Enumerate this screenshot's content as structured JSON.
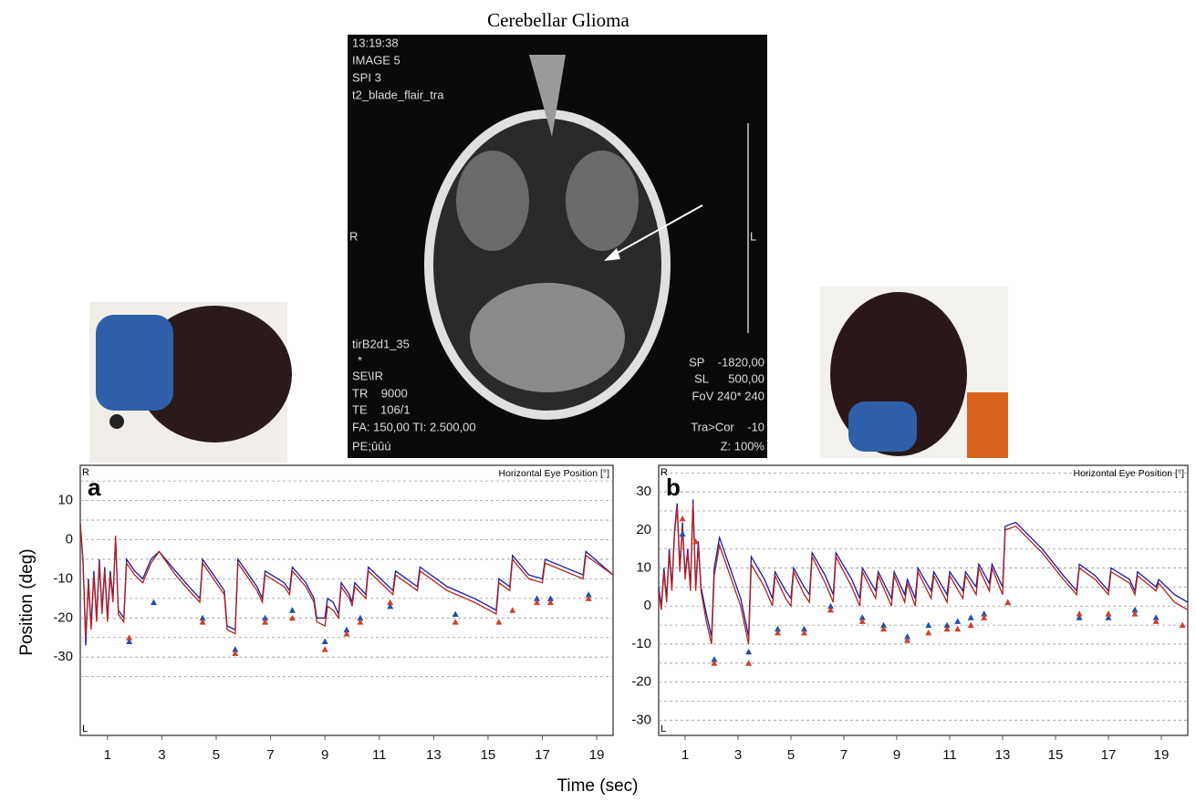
{
  "figure": {
    "title": "Cerebellar Glioma",
    "xlabel": "Time (sec)",
    "ylabel": "Position (deg)",
    "mri_text": [
      "13:19:38",
      "IMAGE 5",
      "SPI 3",
      "t2_blade_flair_tra",
      "R",
      "L",
      "tirB2d1_35",
      "*",
      "SE\\IR",
      "TR    9000",
      "TE    106/1",
      "FA: 150,00 TI: 2.500,00",
      "PE;ûûú",
      "SP    -1820,00",
      "SL      500,00",
      "FoV 240* 240",
      "Tra>Cor    -10",
      "Z: 100%"
    ]
  },
  "chart_data": [
    {
      "type": "line",
      "panel_label": "a",
      "annotation": "Horizontal Eye Position [°]",
      "corner_labels": [
        "R",
        "L"
      ],
      "xlim": [
        0,
        19.6
      ],
      "ylim": [
        -50,
        19
      ],
      "xticks": [
        1,
        3,
        5,
        7,
        9,
        11,
        13,
        15,
        17,
        19
      ],
      "yticks": [
        10,
        0,
        -10,
        -20,
        -30
      ],
      "minor_yticks": [
        15,
        5,
        -5,
        -15,
        -25,
        -35
      ],
      "grid": true,
      "x": [
        0,
        0.1,
        0.2,
        0.3,
        0.4,
        0.5,
        0.6,
        0.7,
        0.8,
        0.9,
        1.0,
        1.1,
        1.2,
        1.3,
        1.4,
        1.6,
        1.7,
        2.0,
        2.3,
        2.6,
        2.9,
        3.5,
        4.0,
        4.4,
        4.5,
        5.0,
        5.3,
        5.4,
        5.7,
        5.8,
        6.5,
        6.7,
        6.8,
        7.5,
        7.7,
        7.8,
        8.3,
        8.6,
        8.7,
        9.0,
        9.1,
        9.3,
        9.5,
        9.6,
        9.9,
        10.0,
        10.1,
        10.5,
        10.6,
        11.5,
        11.6,
        12.4,
        12.5,
        13.5,
        14.5,
        15.3,
        15.4,
        15.8,
        15.9,
        16.5,
        17.0,
        17.1,
        18.5,
        18.6,
        19.6
      ],
      "series": [
        {
          "color": "#1a1a9c",
          "values": [
            4,
            -5,
            -27,
            -10,
            -22,
            -8,
            -20,
            -5,
            -18,
            -7,
            -20,
            -8,
            -15,
            0,
            -18,
            -20,
            -5,
            -8,
            -10,
            -5,
            -3,
            -8,
            -12,
            -15,
            -5,
            -10,
            -13,
            -22,
            -23,
            -5,
            -12,
            -15,
            -8,
            -11,
            -13,
            -7,
            -11,
            -15,
            -20,
            -20,
            -15,
            -16,
            -19,
            -11,
            -14,
            -16,
            -11,
            -14,
            -7,
            -13,
            -8,
            -12,
            -7,
            -12,
            -15,
            -18,
            -10,
            -12,
            -4,
            -9,
            -10,
            -5,
            -9,
            -3,
            -9
          ]
        },
        {
          "color": "#b22222",
          "values": [
            4,
            -6,
            -25,
            -11,
            -23,
            -9,
            -21,
            -6,
            -19,
            -8,
            -21,
            -9,
            -16,
            1,
            -19,
            -21,
            -6,
            -9,
            -11,
            -6,
            -3,
            -9,
            -13,
            -16,
            -6,
            -11,
            -14,
            -23,
            -24,
            -6,
            -13,
            -16,
            -9,
            -12,
            -14,
            -8,
            -12,
            -16,
            -21,
            -22,
            -17,
            -18,
            -20,
            -12,
            -15,
            -17,
            -12,
            -15,
            -8,
            -14,
            -9,
            -13,
            -8,
            -13,
            -16,
            -19,
            -11,
            -13,
            -5,
            -10,
            -11,
            -6,
            -10,
            -4,
            -9
          ]
        }
      ],
      "markers": [
        {
          "color": "#1f4fb0",
          "x": [
            1.8,
            2.7,
            4.5,
            5.7,
            6.8,
            7.8,
            9.0,
            9.8,
            10.3,
            11.4,
            13.8,
            16.8,
            17.3,
            18.7
          ],
          "values": [
            -26,
            -16,
            -20,
            -28,
            -20,
            -18,
            -26,
            -23,
            -20,
            -17,
            -19,
            -15,
            -15,
            -14
          ]
        },
        {
          "color": "#d0402a",
          "x": [
            1.8,
            4.5,
            5.7,
            6.8,
            7.8,
            9.0,
            9.8,
            10.3,
            11.4,
            13.8,
            15.4,
            15.9,
            16.8,
            17.3,
            18.7
          ],
          "values": [
            -25,
            -21,
            -29,
            -21,
            -20,
            -28,
            -24,
            -21,
            -16,
            -21,
            -21,
            -18,
            -16,
            -16,
            -15
          ]
        }
      ]
    },
    {
      "type": "line",
      "panel_label": "b",
      "annotation": "Horizontal Eye Position [°]",
      "corner_labels": [
        "R",
        "L"
      ],
      "xlim": [
        0,
        20
      ],
      "ylim": [
        -34,
        37
      ],
      "xticks": [
        1,
        3,
        5,
        7,
        9,
        11,
        13,
        15,
        17,
        19
      ],
      "yticks": [
        30,
        20,
        10,
        0,
        -10,
        -20,
        -30
      ],
      "minor_yticks": [
        35,
        25,
        15,
        5,
        -5,
        -15,
        -25
      ],
      "grid": true,
      "x": [
        0,
        0.1,
        0.2,
        0.3,
        0.4,
        0.5,
        0.6,
        0.7,
        0.8,
        0.9,
        1.0,
        1.1,
        1.2,
        1.3,
        1.4,
        1.5,
        1.6,
        1.8,
        2.0,
        2.1,
        2.3,
        2.7,
        3.1,
        3.4,
        3.5,
        4.0,
        4.3,
        4.4,
        4.8,
        5.0,
        5.1,
        5.5,
        5.7,
        5.8,
        6.3,
        6.6,
        6.7,
        7.3,
        7.6,
        7.7,
        8.2,
        8.3,
        8.8,
        8.9,
        9.3,
        9.4,
        9.7,
        9.8,
        10.3,
        10.4,
        10.9,
        11.0,
        11.5,
        11.6,
        12.0,
        12.1,
        12.5,
        12.6,
        13.0,
        13.1,
        13.5,
        14.5,
        15.3,
        15.8,
        15.9,
        16.5,
        17.0,
        17.1,
        17.8,
        18.0,
        18.1,
        18.8,
        18.9,
        19.5,
        20.0
      ],
      "series": [
        {
          "color": "#1a1a9c",
          "values": [
            5,
            0,
            10,
            2,
            15,
            5,
            20,
            27,
            10,
            22,
            8,
            15,
            5,
            28,
            5,
            17,
            5,
            -2,
            -8,
            10,
            18,
            10,
            2,
            -8,
            13,
            7,
            2,
            9,
            4,
            2,
            10,
            5,
            3,
            14,
            8,
            3,
            14,
            7,
            2,
            10,
            4,
            9,
            2,
            9,
            3,
            7,
            2,
            10,
            4,
            9,
            3,
            9,
            4,
            9,
            5,
            11,
            6,
            11,
            5,
            21,
            22,
            15,
            8,
            4,
            11,
            8,
            4,
            10,
            7,
            4,
            9,
            5,
            7,
            3,
            1
          ]
        },
        {
          "color": "#b22222",
          "values": [
            4,
            -1,
            9,
            1,
            14,
            4,
            19,
            26,
            9,
            21,
            7,
            14,
            4,
            27,
            4,
            16,
            4,
            -4,
            -10,
            8,
            16,
            8,
            0,
            -10,
            11,
            5,
            0,
            8,
            2,
            0,
            9,
            3,
            1,
            13,
            6,
            1,
            13,
            5,
            0,
            9,
            2,
            8,
            0,
            8,
            1,
            6,
            0,
            9,
            2,
            8,
            1,
            8,
            2,
            8,
            3,
            10,
            4,
            10,
            3,
            20,
            21,
            14,
            7,
            3,
            10,
            7,
            3,
            9,
            6,
            3,
            8,
            4,
            6,
            1,
            -1
          ]
        }
      ],
      "markers": [
        {
          "color": "#1f4fb0",
          "x": [
            0.9,
            2.1,
            3.4,
            4.5,
            5.5,
            6.5,
            7.7,
            8.5,
            9.4,
            10.2,
            10.9,
            11.3,
            11.8,
            12.3,
            13.2,
            15.9,
            17.0,
            18.0,
            18.8
          ],
          "values": [
            19,
            -14,
            -12,
            -6,
            -6,
            0,
            -3,
            -5,
            -8,
            -5,
            -5,
            -4,
            -3,
            -2,
            1,
            -3,
            -3,
            -1,
            -3
          ]
        },
        {
          "color": "#d0402a",
          "x": [
            0.9,
            1.4,
            2.1,
            3.4,
            4.5,
            5.5,
            6.5,
            7.7,
            8.5,
            9.4,
            10.2,
            10.9,
            11.3,
            11.8,
            12.3,
            13.2,
            15.9,
            17.0,
            18.0,
            18.8,
            19.8
          ],
          "values": [
            23,
            17,
            -15,
            -15,
            -7,
            -7,
            -1,
            -4,
            -6,
            -9,
            -7,
            -6,
            -6,
            -5,
            -3,
            1,
            -2,
            -2,
            -2,
            -4,
            -5
          ]
        }
      ]
    }
  ]
}
